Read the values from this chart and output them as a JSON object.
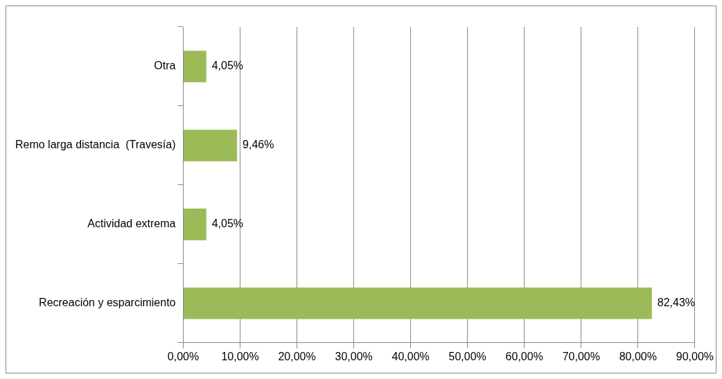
{
  "chart_data": {
    "type": "bar",
    "orientation": "horizontal",
    "categories": [
      "Otra",
      "Remo larga distancia  (Travesía)",
      "Actividad extrema",
      "Recreación y esparcimiento"
    ],
    "values": [
      4.05,
      9.46,
      4.05,
      82.43
    ],
    "value_labels": [
      "4,05%",
      "9,46%",
      "4,05%",
      "82,43%"
    ],
    "color": "#9bbb59",
    "xlim": [
      0,
      90
    ],
    "xticks": [
      {
        "value": 0,
        "label": "0,00%"
      },
      {
        "value": 10,
        "label": "10,00%"
      },
      {
        "value": 20,
        "label": "20,00%"
      },
      {
        "value": 30,
        "label": "30,00%"
      },
      {
        "value": 40,
        "label": "40,00%"
      },
      {
        "value": 50,
        "label": "50,00%"
      },
      {
        "value": 60,
        "label": "60,00%"
      },
      {
        "value": 70,
        "label": "70,00%"
      },
      {
        "value": 80,
        "label": "80,00%"
      },
      {
        "value": 90,
        "label": "90,00%"
      }
    ],
    "grid": "x",
    "legend": false
  }
}
